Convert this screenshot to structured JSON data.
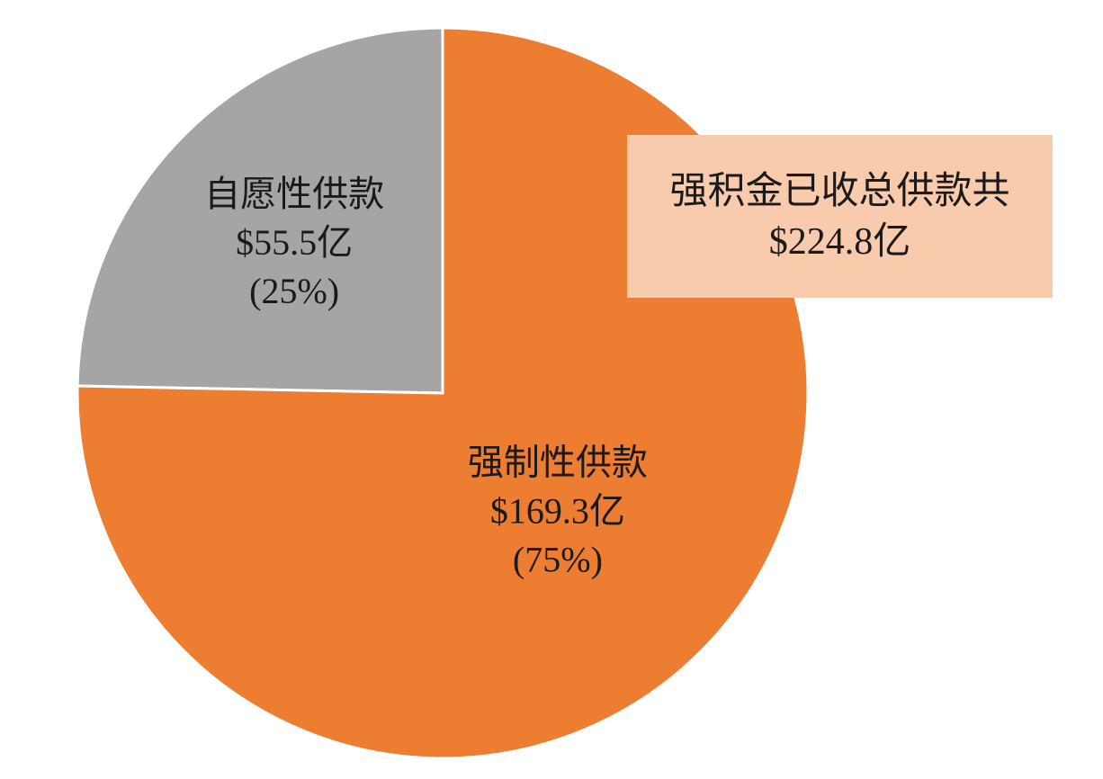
{
  "chart_data": {
    "type": "pie",
    "title": "",
    "slices": [
      {
        "name": "自愿性供款",
        "value": 55.5,
        "value_label": "$55.5亿",
        "percent_label": "(25%)",
        "color": "#a5a5a5"
      },
      {
        "name": "强制性供款",
        "value": 169.3,
        "value_label": "$169.3亿",
        "percent_label": "(75%)",
        "color": "#ed7d31"
      }
    ],
    "start_angle": "12 o'clock",
    "direction": "counterclockwise",
    "slice_border_color": "#ffffff"
  },
  "callout": {
    "line1": "强积金已收总供款共",
    "line2": "$224.8亿",
    "background": "#f8cbad"
  }
}
